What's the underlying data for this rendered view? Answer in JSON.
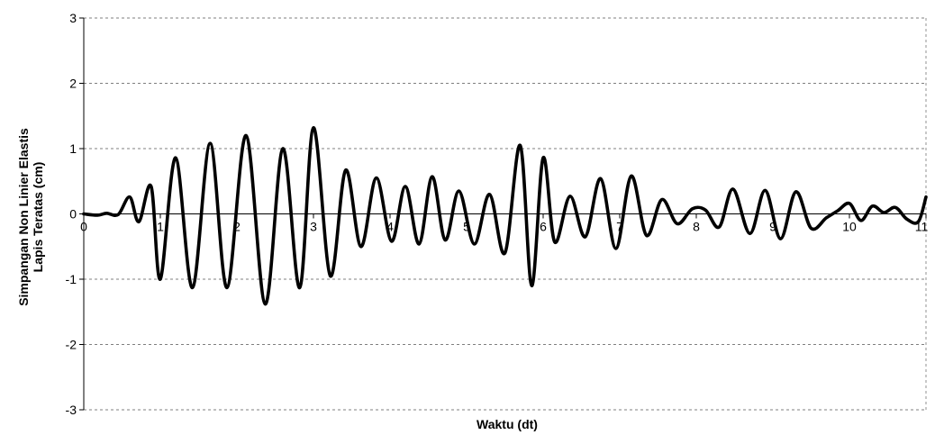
{
  "chart_data": {
    "type": "line",
    "title": "",
    "xlabel": "Waktu (dt)",
    "ylabel_lines": [
      "Simpangan Non Linier Elastis",
      "Lapis Teratas (cm)"
    ],
    "xlim": [
      0,
      11
    ],
    "ylim": [
      -3,
      3
    ],
    "x_ticks": [
      "0",
      "1",
      "2",
      "3",
      "4",
      "5",
      "6",
      "7",
      "8",
      "9",
      "10",
      "11"
    ],
    "y_ticks": [
      "3",
      "2",
      "1",
      "0",
      "-1",
      "-2",
      "-3"
    ],
    "grid": "horizontal-dashed",
    "line_color": "#000000",
    "series": [
      {
        "x": [
          0,
          0.18,
          0.3,
          0.45,
          0.6,
          0.72,
          0.88,
          1.0,
          1.2,
          1.42,
          1.65,
          1.87,
          2.12,
          2.37,
          2.6,
          2.82,
          3.0,
          3.22,
          3.42,
          3.62,
          3.82,
          4.02,
          4.2,
          4.38,
          4.55,
          4.72,
          4.9,
          5.1,
          5.3,
          5.5,
          5.7,
          5.85,
          6.0,
          6.15,
          6.35,
          6.55,
          6.75,
          6.95,
          7.15,
          7.35,
          7.55,
          7.75,
          7.95,
          8.12,
          8.3,
          8.48,
          8.7,
          8.9,
          9.1,
          9.3,
          9.5,
          9.7,
          9.85,
          10.0,
          10.15,
          10.3,
          10.45,
          10.6,
          10.75,
          10.9,
          11.0
        ],
        "y": [
          0,
          -0.02,
          0.01,
          -0.01,
          0.26,
          -0.12,
          0.42,
          -1.0,
          0.86,
          -1.13,
          1.08,
          -1.13,
          1.2,
          -1.38,
          1.0,
          -1.13,
          1.32,
          -0.95,
          0.67,
          -0.5,
          0.55,
          -0.42,
          0.42,
          -0.46,
          0.57,
          -0.4,
          0.35,
          -0.46,
          0.3,
          -0.6,
          1.05,
          -1.1,
          0.86,
          -0.43,
          0.27,
          -0.35,
          0.54,
          -0.53,
          0.58,
          -0.33,
          0.22,
          -0.15,
          0.08,
          0.06,
          -0.2,
          0.38,
          -0.3,
          0.36,
          -0.38,
          0.34,
          -0.22,
          -0.06,
          0.05,
          0.16,
          -0.1,
          0.12,
          0.02,
          0.1,
          -0.08,
          -0.12,
          0.26
        ]
      }
    ]
  }
}
